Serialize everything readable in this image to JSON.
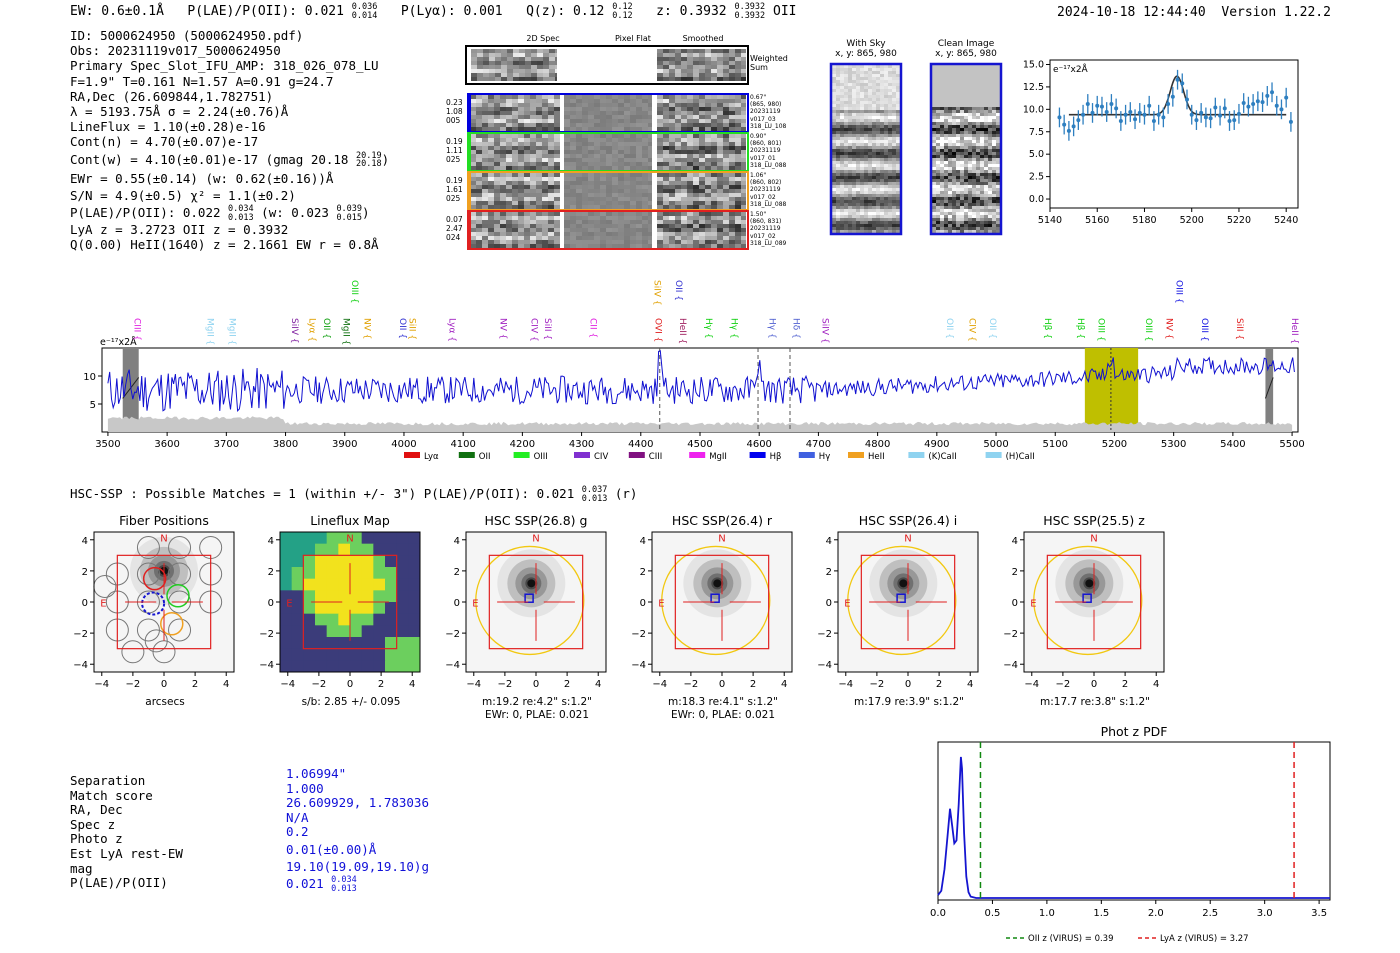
{
  "header": {
    "ew": "EW: 0.6±0.1Å",
    "plae_label": "P(LAE)/P(OII): 0.021",
    "plae_hi": "0.036",
    "plae_lo": "0.014",
    "plya": "P(Lyα): 0.001",
    "qz_label": "Q(z): 0.12",
    "qz_hi": "0.12",
    "qz_lo": "0.12",
    "z_label": "z: 0.3932",
    "z_hi": "0.3932",
    "z_lo": "0.3932",
    "z_line": "OII",
    "timestamp": "2024-10-18 12:44:40",
    "version": "Version 1.22.2"
  },
  "info": {
    "lines": [
      "ID: 5000624950 (5000624950.pdf)",
      "Obs: 20231119v017_5000624950",
      "Primary Spec_Slot_IFU_AMP: 318_026_078_LU",
      "F=1.9\"  T=0.161  N=1.57  A=0.91  g=24.7",
      "RA,Dec (26.609844,1.782751)",
      "λ = 5193.75Å  σ = 2.24(±0.76)Å",
      "LineFlux = 1.10(±0.28)e-16",
      "Cont(n) = 4.70(±0.07)e-17"
    ],
    "contw_label": "Cont(w) = 4.10(±0.01)e-17 (gmag 20.18",
    "contw_hi": "20.19",
    "contw_lo": "20.18",
    "contw_end": ")",
    "ewr": "EWr = 0.55(±0.14) (w: 0.62(±0.16))Å",
    "sn": "S/N = 4.9(±0.5)  χ² = 1.1(±0.2)",
    "plae_label": "P(LAE)/P(OII): 0.022",
    "plae_hi": "0.034",
    "plae_lo": "0.013",
    "plae_w": "(w: 0.023",
    "plae_w_hi": "0.039",
    "plae_w_lo": "0.015",
    "plae_w_end": ")",
    "lya_z": "LyA z = 3.2723   OII z = 0.3932",
    "q_line": "Q(0.00) HeII(1640) z = 2.1661  EW r = 0.8Å"
  },
  "cutouts": {
    "col_labels": [
      "2D Spec",
      "Pixel Flat",
      "Smoothed"
    ],
    "weighted_sum": [
      "Weighted",
      "Sum"
    ],
    "rows": [
      {
        "left": [
          "0.23",
          "1.08",
          "005"
        ],
        "right": [
          "0.67\"",
          "(865, 980)",
          "20231119",
          "v017_03",
          "318_LU_108"
        ],
        "color": "#0000dd"
      },
      {
        "left": [
          "0.19",
          "1.11",
          "025"
        ],
        "right": [
          "0.90\"",
          "(860, 801)",
          "20231119",
          "v017_01",
          "318_LU_088"
        ],
        "color": "#22dd22"
      },
      {
        "left": [
          "0.19",
          "1.61",
          "025"
        ],
        "right": [
          "1.06\"",
          "(860, 802)",
          "20231119",
          "v017_02",
          "318_LU_088"
        ],
        "color": "#f0a020"
      },
      {
        "left": [
          "0.07",
          "2.47",
          "024"
        ],
        "right": [
          "1.50\"",
          "(860, 831)",
          "20231119",
          "v017_02",
          "318_LU_089"
        ],
        "color": "#e02020"
      }
    ]
  },
  "sky": {
    "with_sky_title": "With Sky",
    "with_sky_xy": "x, y: 865, 980",
    "clean_title": "Clean Image",
    "clean_xy": "x, y: 865, 980"
  },
  "zoom_chart": {
    "chart_data": {
      "type": "scatter",
      "units_label": "e⁻¹⁷x2Å",
      "xlim": [
        5140,
        5245
      ],
      "ylim": [
        -1,
        15.5
      ],
      "xticks": [
        5140,
        5160,
        5180,
        5200,
        5220,
        5240
      ],
      "yticks": [
        0.0,
        2.5,
        5.0,
        7.5,
        10.0,
        12.5,
        15.0
      ],
      "ytick_labels": [
        "0.0",
        "2.5",
        "5.0",
        "7.5",
        "10.0",
        "12.5",
        "15.0"
      ],
      "x": [
        5144,
        5146,
        5148,
        5150,
        5152,
        5154,
        5156,
        5158,
        5160,
        5162,
        5164,
        5166,
        5168,
        5170,
        5172,
        5174,
        5176,
        5178,
        5180,
        5182,
        5184,
        5186,
        5188,
        5190,
        5192,
        5194,
        5196,
        5198,
        5200,
        5202,
        5204,
        5206,
        5208,
        5210,
        5212,
        5214,
        5216,
        5218,
        5220,
        5222,
        5224,
        5226,
        5228,
        5230,
        5232,
        5234,
        5236,
        5238,
        5240,
        5242
      ],
      "y": [
        9.1,
        8.3,
        7.6,
        8.1,
        8.8,
        9.4,
        10.6,
        9.6,
        10.4,
        10.3,
        9.7,
        10.6,
        10.1,
        8.7,
        9.4,
        9.7,
        8.9,
        9.6,
        9.4,
        10.4,
        8.7,
        9.4,
        9.1,
        10.6,
        11.4,
        13.3,
        12.9,
        11.1,
        9.4,
        8.8,
        9.6,
        9.1,
        9.0,
        10.2,
        9.3,
        10.1,
        8.7,
        8.8,
        9.5,
        10.7,
        10.3,
        10.6,
        10.9,
        10.8,
        11.5,
        11.9,
        10.4,
        10.0,
        11.3,
        8.6
      ],
      "err": 1.1,
      "fit": {
        "continuum": 9.4,
        "peak": 13.7,
        "center": 5193.75,
        "sigma": 2.24
      }
    }
  },
  "spectrum": {
    "chart_data": {
      "type": "line",
      "units_label": "e⁻¹⁷x2Å",
      "xlim": [
        3490,
        5510
      ],
      "ylim": [
        0,
        15
      ],
      "xticks": [
        3500,
        3600,
        3700,
        3800,
        3900,
        4000,
        4100,
        4200,
        4300,
        4400,
        4500,
        4600,
        4700,
        4800,
        4900,
        5000,
        5100,
        5200,
        5300,
        5400,
        5500
      ],
      "yticks": [
        5,
        10
      ],
      "highlight": [
        5150,
        5240
      ],
      "bad_regions": [
        [
          3525,
          3552
        ],
        [
          5455,
          5468
        ]
      ],
      "dashed_lines": [
        4432,
        4598,
        4652
      ],
      "line_center": 5194,
      "line_labels": [
        {
          "label": "CIII",
          "x": 3540,
          "tier": 0,
          "color": "#e020e0"
        },
        {
          "label": "MgII",
          "x": 3663,
          "tier": 0,
          "color": "#8fd3f0"
        },
        {
          "label": "MgII",
          "x": 3700,
          "tier": 0,
          "color": "#8fd3f0"
        },
        {
          "label": "SiIV",
          "x": 3806,
          "tier": 0,
          "color": "#8020a0"
        },
        {
          "label": "Lyα",
          "x": 3835,
          "tier": 0,
          "color": "#e0a000"
        },
        {
          "label": "OII",
          "x": 3860,
          "tier": 0,
          "color": "#10a010"
        },
        {
          "label": "MgII",
          "x": 3893,
          "tier": 0,
          "color": "#107010"
        },
        {
          "label": "OIII",
          "x": 3907,
          "tier": 1,
          "color": "#10d010"
        },
        {
          "label": "NV",
          "x": 3928,
          "tier": 0,
          "color": "#e0a000"
        },
        {
          "label": "OII",
          "x": 3988,
          "tier": 0,
          "color": "#3030d0"
        },
        {
          "label": "SiII",
          "x": 4004,
          "tier": 0,
          "color": "#e0a000"
        },
        {
          "label": "Lyα",
          "x": 4072,
          "tier": 0,
          "color": "#a020c0"
        },
        {
          "label": "NV",
          "x": 4158,
          "tier": 0,
          "color": "#a020c0"
        },
        {
          "label": "CIV",
          "x": 4210,
          "tier": 0,
          "color": "#a020c0"
        },
        {
          "label": "SiII",
          "x": 4233,
          "tier": 0,
          "color": "#a020c0"
        },
        {
          "label": "CII",
          "x": 4310,
          "tier": 0,
          "color": "#e020e0"
        },
        {
          "label": "OVI",
          "x": 4420,
          "tier": 0,
          "color": "#e02020"
        },
        {
          "label": "SiIV",
          "x": 4418,
          "tier": 1,
          "color": "#e0a000"
        },
        {
          "label": "OII",
          "x": 4454,
          "tier": 1,
          "color": "#3030d0"
        },
        {
          "label": "HeII",
          "x": 4461,
          "tier": 0,
          "color": "#a02060"
        },
        {
          "label": "Hγ",
          "x": 4505,
          "tier": 0,
          "color": "#10d010"
        },
        {
          "label": "Hγ",
          "x": 4548,
          "tier": 0,
          "color": "#10d010"
        },
        {
          "label": "Hγ",
          "x": 4612,
          "tier": 0,
          "color": "#5060d0"
        },
        {
          "label": "Hδ",
          "x": 4653,
          "tier": 0,
          "color": "#5060d0"
        },
        {
          "label": "SiIV",
          "x": 4702,
          "tier": 0,
          "color": "#a020c0"
        },
        {
          "label": "OII",
          "x": 4912,
          "tier": 0,
          "color": "#8fd3f0"
        },
        {
          "label": "CIV",
          "x": 4950,
          "tier": 0,
          "color": "#e0a000"
        },
        {
          "label": "OII",
          "x": 4985,
          "tier": 0,
          "color": "#8fd3f0"
        },
        {
          "label": "Hβ",
          "x": 5078,
          "tier": 0,
          "color": "#10d010"
        },
        {
          "label": "Hβ",
          "x": 5133,
          "tier": 0,
          "color": "#10d010"
        },
        {
          "label": "OIII",
          "x": 5168,
          "tier": 0,
          "color": "#10d010"
        },
        {
          "label": "OIII",
          "x": 5248,
          "tier": 0,
          "color": "#10d010"
        },
        {
          "label": "NV",
          "x": 5283,
          "tier": 0,
          "color": "#e02020"
        },
        {
          "label": "OIII",
          "x": 5300,
          "tier": 1,
          "color": "#1010e0"
        },
        {
          "label": "OIII",
          "x": 5343,
          "tier": 0,
          "color": "#1010e0"
        },
        {
          "label": "SiII",
          "x": 5402,
          "tier": 0,
          "color": "#e02020"
        },
        {
          "label": "HeII",
          "x": 5495,
          "tier": 0,
          "color": "#a020c0"
        }
      ],
      "legend": [
        {
          "label": "Lyα",
          "color": "#e01010"
        },
        {
          "label": "OII",
          "color": "#107010"
        },
        {
          "label": "OIII",
          "color": "#22ee22"
        },
        {
          "label": "CIV",
          "color": "#8030d0"
        },
        {
          "label": "CIII",
          "color": "#801080"
        },
        {
          "label": "MgII",
          "color": "#ee22ee"
        },
        {
          "label": "Hβ",
          "color": "#0000ee"
        },
        {
          "label": "Hγ",
          "color": "#4060e0"
        },
        {
          "label": "HeII",
          "color": "#f0a020"
        },
        {
          "label": "(K)CaII",
          "color": "#8fd3f0"
        },
        {
          "label": "(H)CaII",
          "color": "#8fd3f0"
        }
      ]
    }
  },
  "hsc": {
    "summary_label": "HSC-SSP : Possible Matches = 1 (within +/- 3\")  P(LAE)/P(OII): 0.021",
    "summary_hi": "0.037",
    "summary_lo": "0.013",
    "summary_end": "(r)",
    "panels": [
      {
        "title": "Fiber Positions",
        "cap1": "arcsecs",
        "cap2": ""
      },
      {
        "title": "Lineflux Map",
        "cap1": "s/b: 2.85 +/- 0.095",
        "cap2": ""
      },
      {
        "title": "HSC SSP(26.8) g",
        "cap1": "m:19.2  re:4.2\"  s:1.2\"",
        "cap2": "EWr: 0, PLAE: 0.021"
      },
      {
        "title": "HSC SSP(26.4) r",
        "cap1": "m:18.3  re:4.1\"  s:1.2\"",
        "cap2": "EWr: 0, PLAE: 0.021"
      },
      {
        "title": "HSC SSP(26.4) i",
        "cap1": "m:17.9  re:3.9\"  s:1.2\"",
        "cap2": ""
      },
      {
        "title": "HSC SSP(25.5) z",
        "cap1": "m:17.7  re:3.8\"  s:1.2\"",
        "cap2": ""
      }
    ],
    "ticks": [
      "−4",
      "−2",
      "0",
      "2",
      "4"
    ],
    "yticks": [
      "4",
      "2",
      "0",
      "−2",
      "−4"
    ],
    "north": "N",
    "east": "E"
  },
  "match": {
    "keys": [
      "Separation",
      "Match score",
      "RA, Dec",
      "Spec z",
      "Photo z",
      "Est LyA rest-EW",
      "mag",
      "P(LAE)/P(OII)"
    ],
    "values": [
      "1.06994\"",
      "1.000",
      "26.609929, 1.783036",
      "N/A",
      "0.2",
      "0.01(±0.00)Å",
      "19.10(19.09,19.10)g"
    ],
    "plae_value": "0.021",
    "plae_hi": "0.034",
    "plae_lo": "0.013"
  },
  "photz": {
    "chart_data": {
      "type": "line",
      "title": "Phot z PDF",
      "xlim": [
        0.0,
        3.6
      ],
      "xticks": [
        0.0,
        0.5,
        1.0,
        1.5,
        2.0,
        2.5,
        3.0,
        3.5
      ],
      "xtick_labels": [
        "0.0",
        "0.5",
        "1.0",
        "1.5",
        "2.0",
        "2.5",
        "3.0",
        "3.5"
      ],
      "x": [
        0.0,
        0.03,
        0.06,
        0.09,
        0.11,
        0.13,
        0.15,
        0.17,
        0.19,
        0.21,
        0.22,
        0.24,
        0.26,
        0.28,
        0.3,
        0.35,
        0.5,
        1.0,
        2.0,
        3.0,
        3.6
      ],
      "y": [
        0.02,
        0.05,
        0.2,
        0.45,
        0.62,
        0.5,
        0.38,
        0.4,
        0.65,
        0.98,
        0.9,
        0.45,
        0.15,
        0.04,
        0.01,
        0.0,
        0.0,
        0.0,
        0.0,
        0.0,
        0.0
      ],
      "oii_z": 0.39,
      "lya_z": 3.27,
      "legend": [
        "OII z (VIRUS) = 0.39",
        "LyA z (VIRUS) = 3.27"
      ]
    }
  }
}
